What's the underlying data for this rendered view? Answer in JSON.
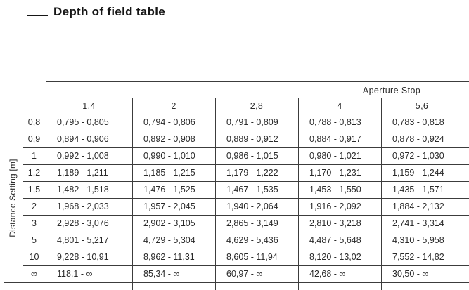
{
  "title": {
    "text": "Depth of field table"
  },
  "table": {
    "header_group": "Aperture Stop",
    "row_axis_label": "Distance Setting [m]",
    "aperture_columns": [
      "1,4",
      "2",
      "2,8",
      "4",
      "5,6"
    ],
    "rows": [
      {
        "distance": "0,8",
        "values": [
          "0,795 - 0,805",
          "0,794 - 0,806",
          "0,791 - 0,809",
          "0,788 - 0,813",
          "0,783 - 0,818"
        ]
      },
      {
        "distance": "0,9",
        "values": [
          "0,894 - 0,906",
          "0,892 - 0,908",
          "0,889 - 0,912",
          "0,884 - 0,917",
          "0,878 - 0,924"
        ]
      },
      {
        "distance": "1",
        "values": [
          "0,992 - 1,008",
          "0,990 - 1,010",
          "0,986 - 1,015",
          "0,980 - 1,021",
          "0,972 - 1,030"
        ]
      },
      {
        "distance": "1,2",
        "values": [
          "1,189 - 1,211",
          "1,185 - 1,215",
          "1,179 - 1,222",
          "1,170 - 1,231",
          "1,159 - 1,244"
        ]
      },
      {
        "distance": "1,5",
        "values": [
          "1,482 - 1,518",
          "1,476 - 1,525",
          "1,467 - 1,535",
          "1,453 - 1,550",
          "1,435 - 1,571"
        ]
      },
      {
        "distance": "2",
        "values": [
          "1,968 - 2,033",
          "1,957 - 2,045",
          "1,940 - 2,064",
          "1,916 - 2,092",
          "1,884 - 2,132"
        ]
      },
      {
        "distance": "3",
        "values": [
          "2,928 - 3,076",
          "2,902 - 3,105",
          "2,865 - 3,149",
          "2,810 - 3,218",
          "2,741 - 3,314"
        ]
      },
      {
        "distance": "5",
        "values": [
          "4,801 - 5,217",
          "4,729 - 5,304",
          "4,629 - 5,436",
          "4,487 - 5,648",
          "4,310 - 5,958"
        ]
      },
      {
        "distance": "10",
        "values": [
          "9,228 - 10,91",
          "8,962 - 11,31",
          "8,605 - 11,94",
          "8,120 - 13,02",
          "7,552 - 14,82"
        ]
      },
      {
        "distance": "∞",
        "values": [
          "118,1 - ∞",
          "85,34 - ∞",
          "60,97 - ∞",
          "42,68 - ∞",
          "30,50 - ∞"
        ]
      }
    ]
  },
  "colors": {
    "background": "#ffffff",
    "text": "#2a2a2a",
    "line": "#3c3c3c"
  }
}
